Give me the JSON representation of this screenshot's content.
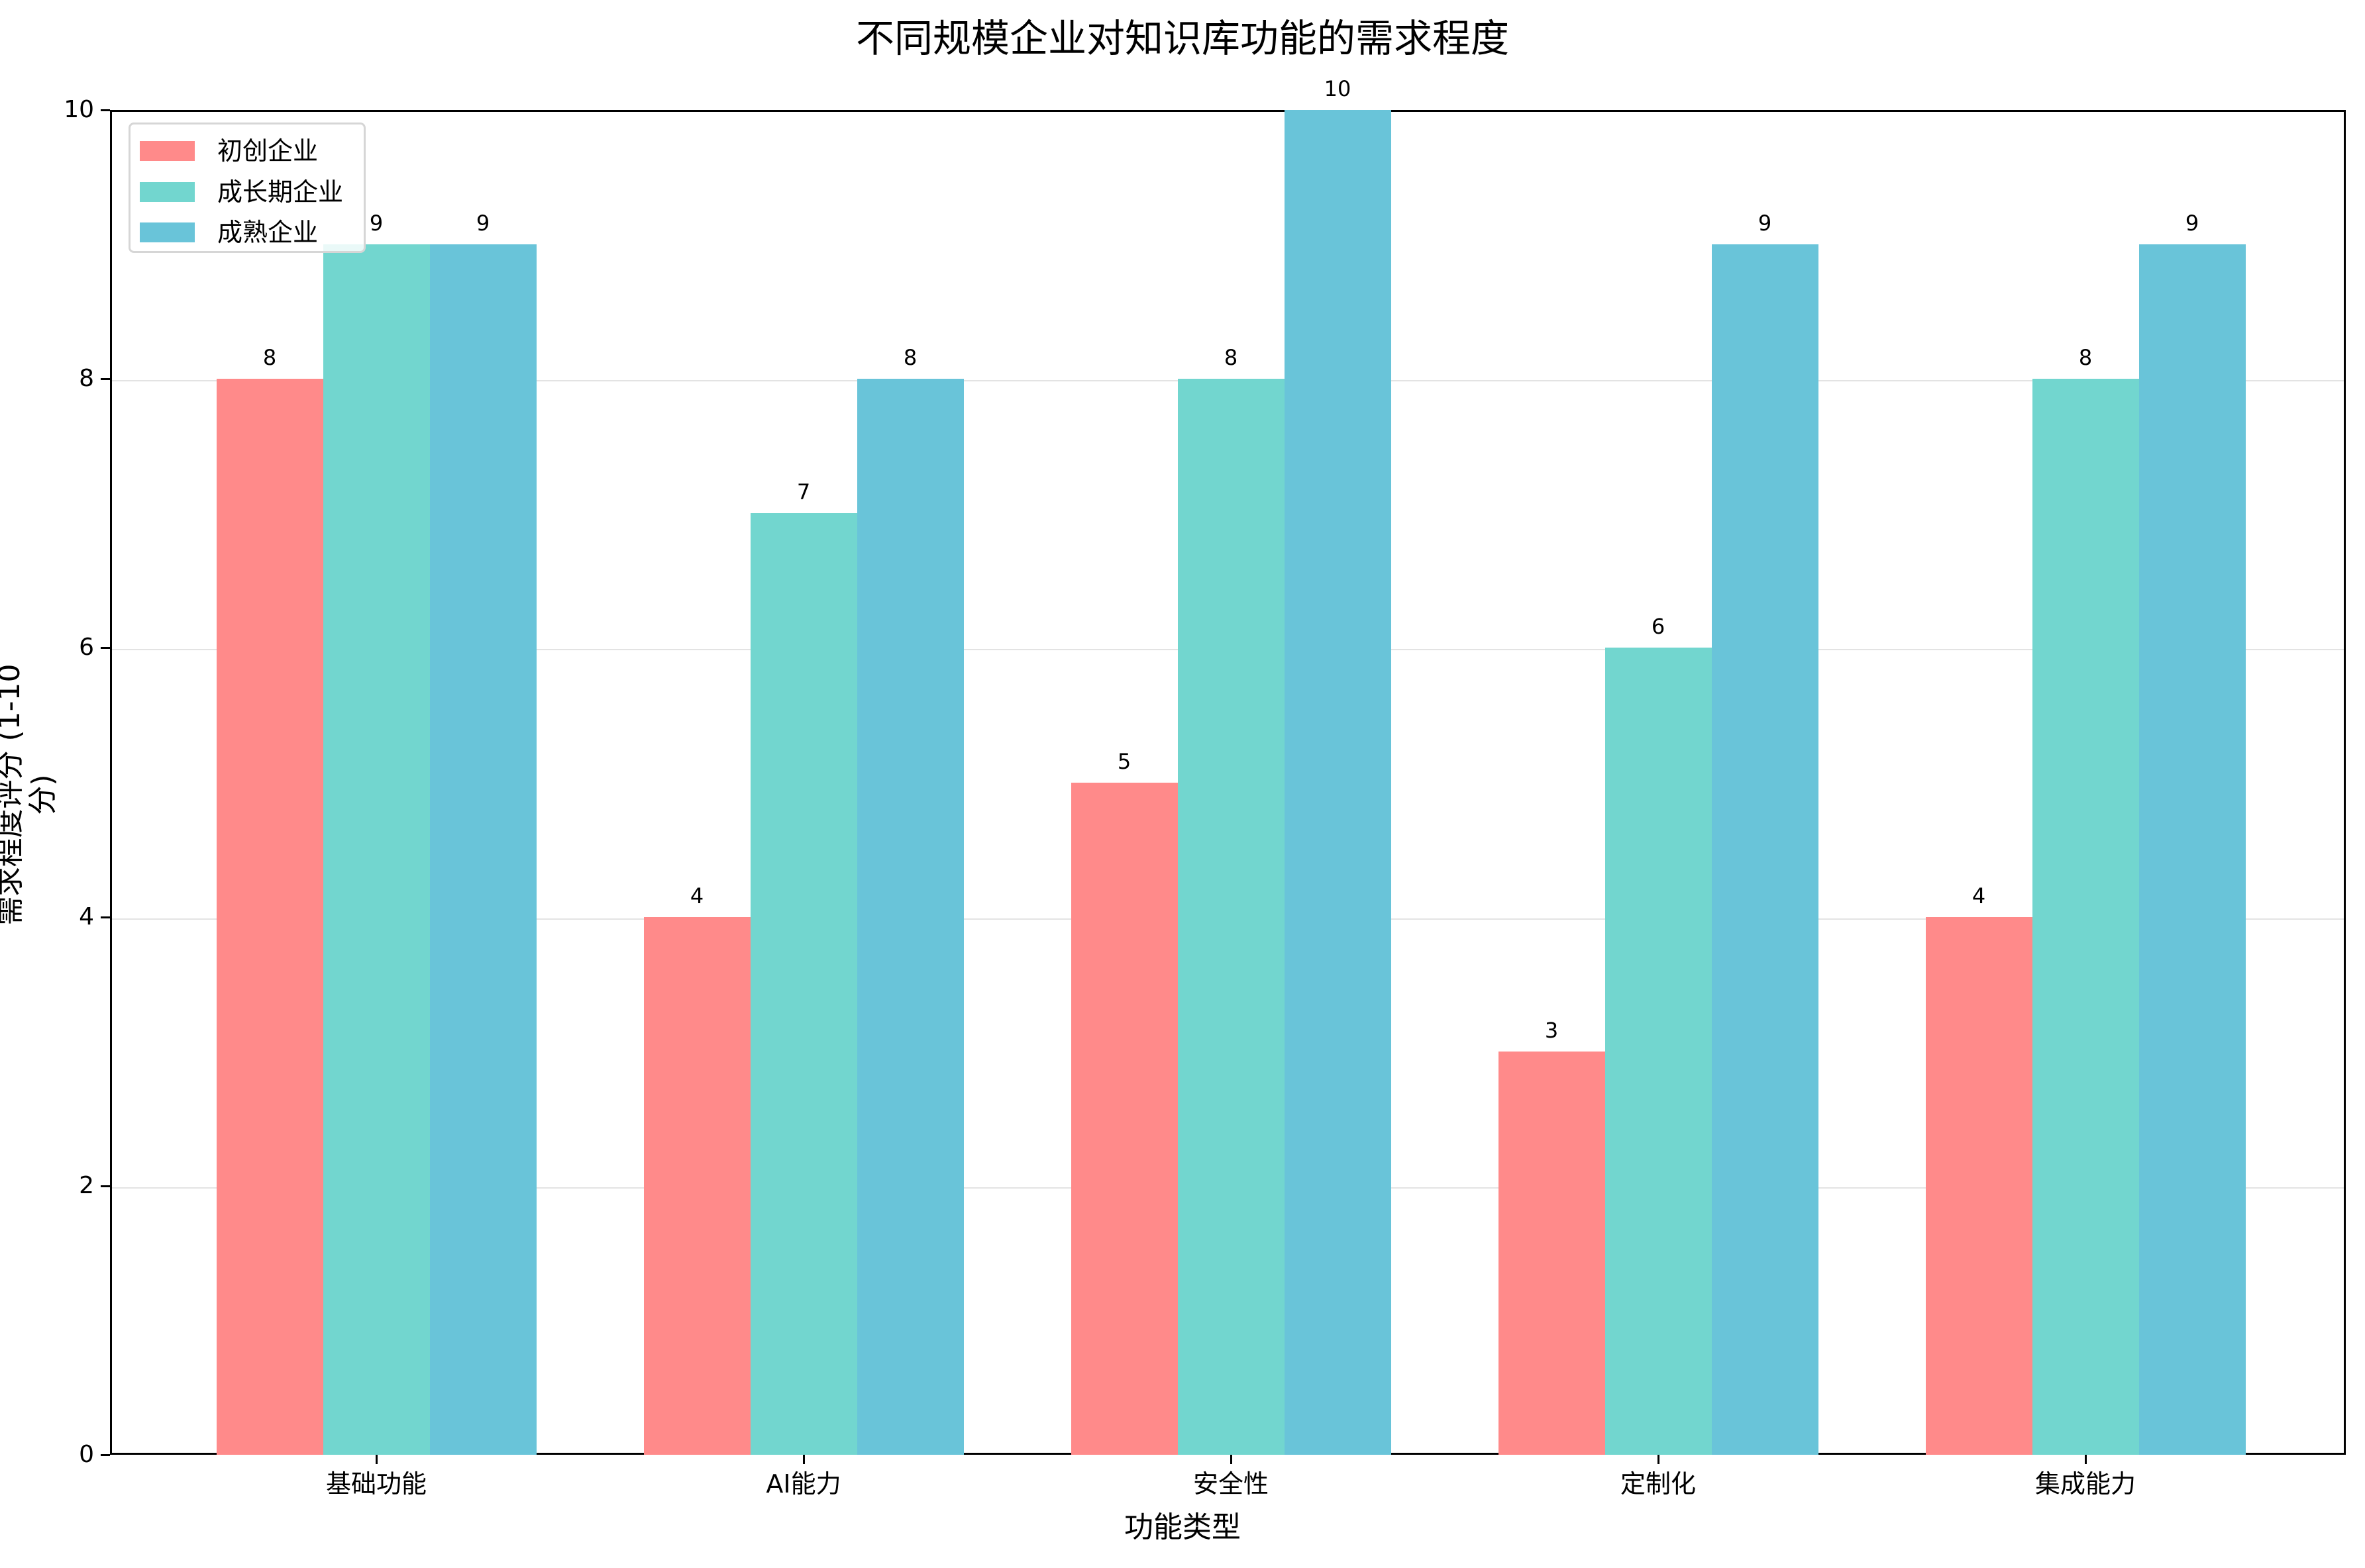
{
  "chart_data": {
    "type": "bar",
    "title": "不同规模企业对知识库功能的需求程度",
    "xlabel": "功能类型",
    "ylabel": "需求程度评分 (1-10分)",
    "ylim": [
      0,
      10
    ],
    "yticks": [
      "0",
      "2",
      "4",
      "6",
      "8",
      "10"
    ],
    "grid": "y",
    "legend_position": "upper left",
    "categories": [
      "基础功能",
      "AI能力",
      "安全性",
      "定制化",
      "集成能力"
    ],
    "series": [
      {
        "name": "初创企业",
        "color": "#FF8A8A",
        "values": [
          8,
          4,
          5,
          3,
          4
        ]
      },
      {
        "name": "成长期企业",
        "color": "#72D6CF",
        "values": [
          9,
          7,
          8,
          6,
          8
        ]
      },
      {
        "name": "成熟企业",
        "color": "#69C4D9",
        "values": [
          9,
          8,
          10,
          9,
          9
        ]
      }
    ]
  }
}
